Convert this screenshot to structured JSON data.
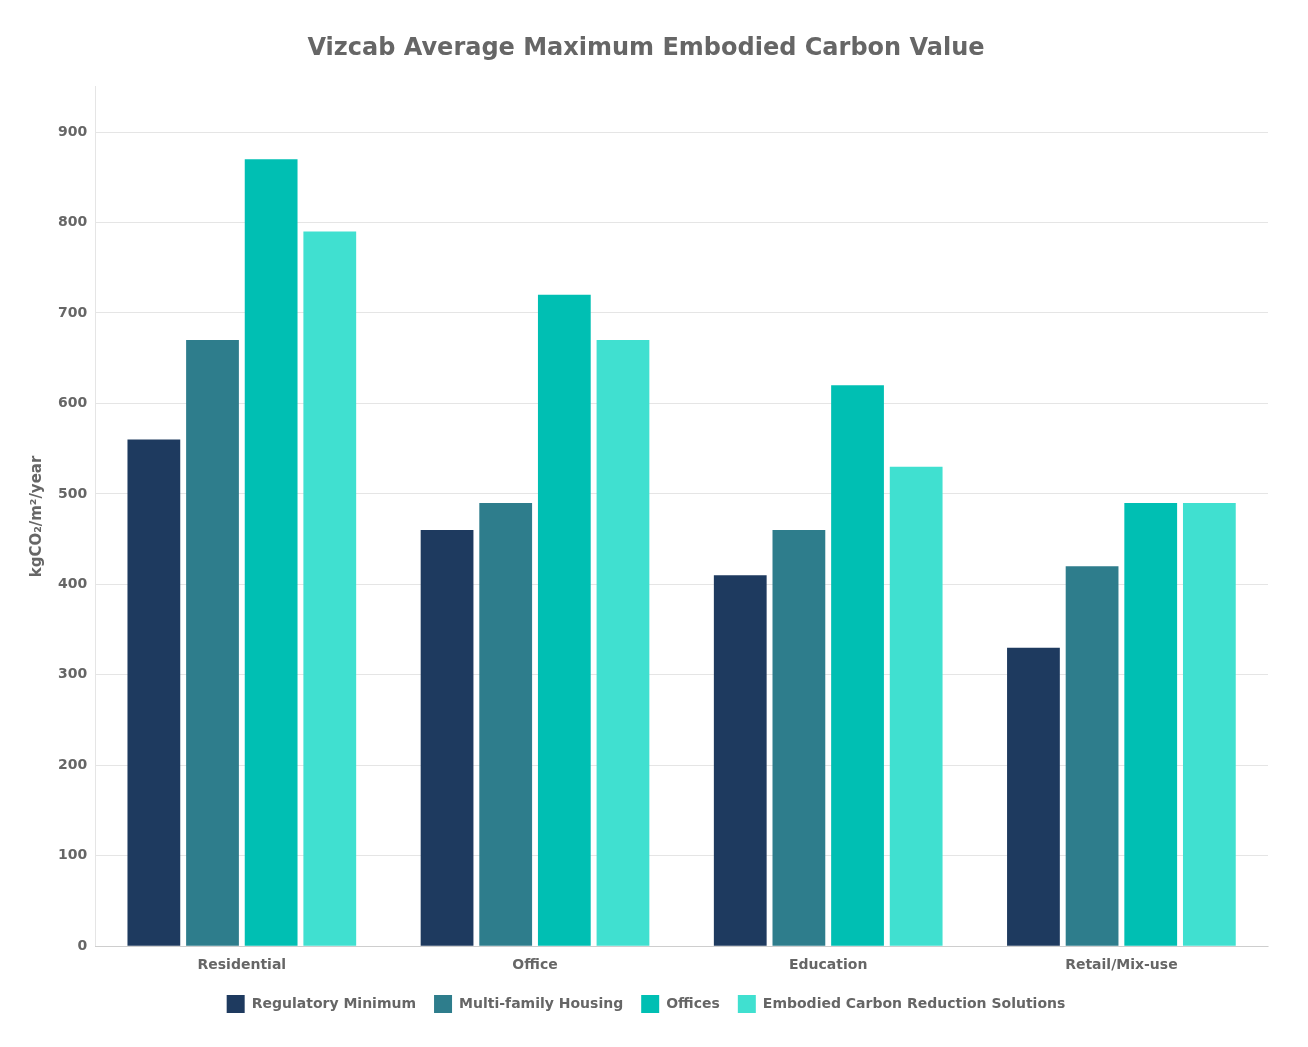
{
  "chart_data": {
    "type": "bar",
    "title": "Vizcab Average Maximum Embodied Carbon Value",
    "ylabel": "kgCO₂/m²/year",
    "categories": [
      "Residential",
      "Office",
      "Education",
      "Retail/Mix-use"
    ],
    "series": [
      {
        "name": "Regulatory Minimum",
        "color": "#1e3a5f",
        "values": [
          560,
          460,
          410,
          330
        ]
      },
      {
        "name": "Multi-family Housing",
        "color": "#2e7d8c",
        "values": [
          670,
          490,
          460,
          420
        ]
      },
      {
        "name": "Offices",
        "color": "#00bfb3",
        "values": [
          870,
          720,
          620,
          490
        ]
      },
      {
        "name": "Embodied Carbon Reduction Solutions",
        "color": "#40e0d0",
        "values": [
          790,
          670,
          530,
          490
        ]
      }
    ],
    "ylim": [
      0,
      950
    ],
    "yticks": [
      0,
      100,
      200,
      300,
      400,
      500,
      600,
      700,
      800,
      900
    ],
    "grid": true,
    "legend": "bottom"
  }
}
